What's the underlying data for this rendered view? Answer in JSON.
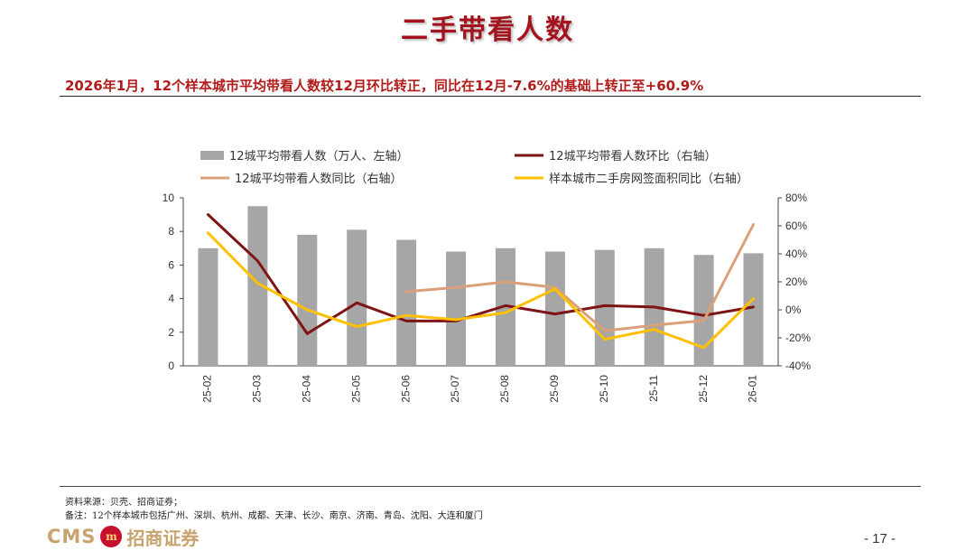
{
  "page": {
    "title": "二手带看人数",
    "subtitle": "2026年1月，12个样本城市平均带看人数较12月环比转正，同比在12月-7.6%的基础上转正至+60.9%",
    "source": "资料来源：贝壳、招商证券；",
    "note": "备注：12个样本城市包括广州、深圳、杭州、成都、天津、长沙、南京、济南、青岛、沈阳、大连和厦门",
    "page_number": "- 17 -",
    "logo_text": "CMS",
    "logo_badge": "m",
    "logo_cn": "招商证券"
  },
  "chart_data": {
    "type": "bar+line",
    "categories": [
      "25-02",
      "25-03",
      "25-04",
      "25-05",
      "25-06",
      "25-07",
      "25-08",
      "25-09",
      "25-10",
      "25-11",
      "25-12",
      "26-01"
    ],
    "left_axis": {
      "min": 0,
      "max": 10,
      "ticks": [
        "0",
        "2",
        "4",
        "6",
        "8",
        "10"
      ]
    },
    "right_axis": {
      "min": -40,
      "max": 80,
      "ticks": [
        "-40%",
        "-20%",
        "0%",
        "20%",
        "40%",
        "60%",
        "80%"
      ]
    },
    "bars": {
      "name": "12城平均带看人数（万人、左轴）",
      "color": "#a6a6a6",
      "values": [
        7.0,
        9.5,
        7.8,
        8.1,
        7.5,
        6.8,
        7.0,
        6.8,
        6.9,
        7.0,
        6.6,
        6.7
      ]
    },
    "lines": [
      {
        "name": "12城平均带看人数环比（右轴）",
        "color": "#7f1416",
        "width": 3,
        "values": [
          68,
          35,
          -17,
          5,
          -8,
          -8,
          3,
          -3,
          3,
          2,
          -4,
          2
        ]
      },
      {
        "name": "12城平均带看人数同比（右轴）",
        "color": "#d9a07a",
        "width": 3,
        "values": [
          null,
          null,
          null,
          null,
          13,
          16,
          20,
          16,
          -15,
          -11,
          -7.6,
          60.9
        ]
      },
      {
        "name": "样本城市二手房网签面积同比（右轴）",
        "color": "#ffc000",
        "width": 3,
        "values": [
          55,
          19,
          0,
          -12,
          -4,
          -7,
          -2,
          15,
          -21,
          -14,
          -27,
          8
        ]
      }
    ]
  }
}
